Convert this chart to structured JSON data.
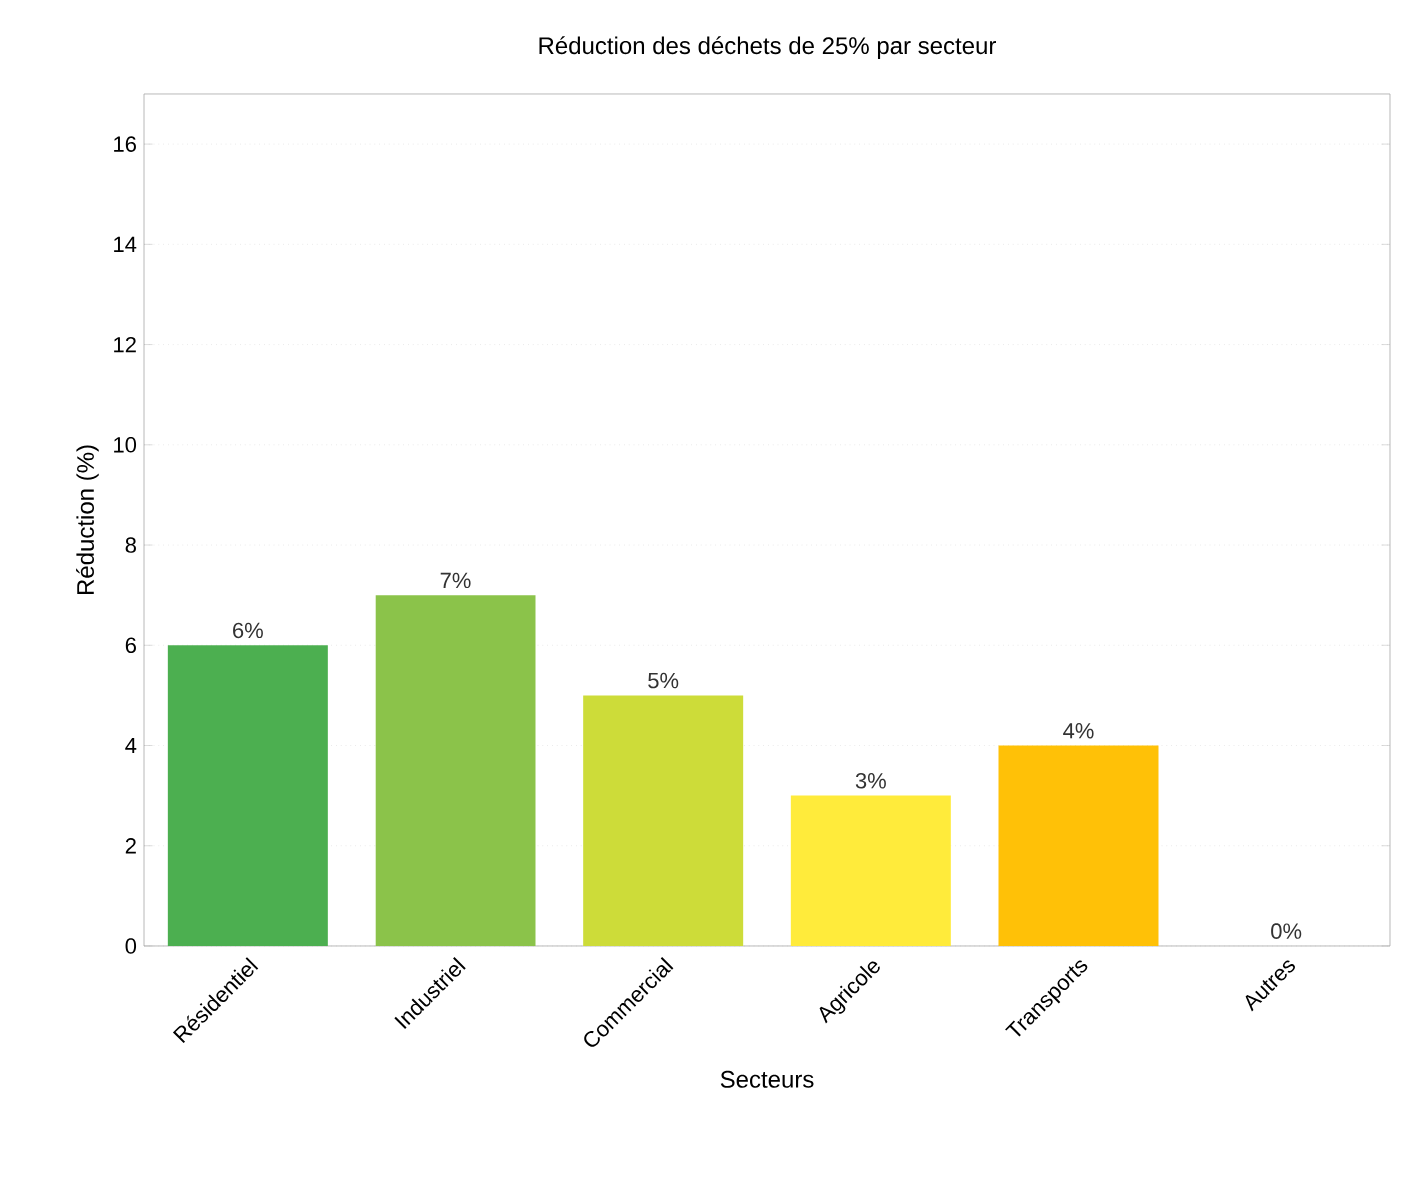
{
  "chart_data": {
    "type": "bar",
    "title": "Réduction des déchets de 25% par secteur",
    "xlabel": "Secteurs",
    "ylabel": "Réduction (%)",
    "categories": [
      "Résidentiel",
      "Industriel",
      "Commercial",
      "Agricole",
      "Transports",
      "Autres"
    ],
    "values": [
      6,
      7,
      5,
      3,
      4,
      0
    ],
    "colors": [
      "#4caf50",
      "#8bc34a",
      "#cddc39",
      "#ffeb3b",
      "#ffc107",
      "#ff9800"
    ],
    "value_labels": [
      "6%",
      "7%",
      "5%",
      "3%",
      "4%",
      "0%"
    ],
    "ylim": [
      0,
      17
    ],
    "yticks": [
      0,
      2,
      4,
      6,
      8,
      10,
      12,
      14,
      16
    ],
    "grid": "y"
  }
}
